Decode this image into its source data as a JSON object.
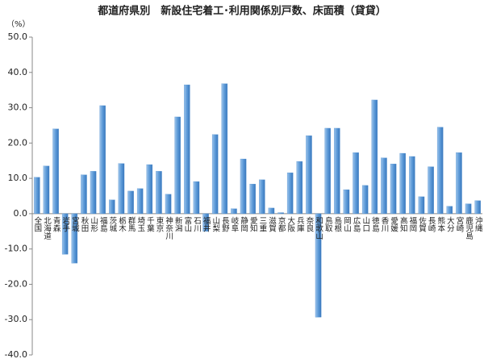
{
  "chart_data": {
    "type": "bar",
    "title": "都道府県別　新設住宅着工･利用関係別戸数、床面積（貸貸）",
    "y_label": "（%）",
    "categories": [
      "全国",
      "北海道",
      "青森",
      "岩手",
      "宮城",
      "秋田",
      "山形",
      "福島",
      "茨城",
      "栃木",
      "群馬",
      "埼玉",
      "千葉",
      "東京",
      "神奈川",
      "新潟",
      "富山",
      "石川",
      "福井",
      "山梨",
      "長野",
      "岐阜",
      "静岡",
      "愛知",
      "三重",
      "滋賀",
      "京都",
      "大阪",
      "兵庫",
      "奈良",
      "和歌山",
      "鳥取",
      "島根",
      "岡山",
      "広島",
      "山口",
      "徳島",
      "香川",
      "愛媛",
      "高知",
      "福岡",
      "佐賀",
      "長崎",
      "熊本",
      "大分",
      "宮崎",
      "鹿児島",
      "沖縄"
    ],
    "values": [
      10.3,
      13.5,
      24.0,
      -11.5,
      -14.0,
      11.0,
      12.0,
      30.6,
      3.9,
      14.2,
      6.4,
      7.1,
      13.9,
      12.0,
      5.5,
      27.4,
      36.5,
      9.1,
      -5.0,
      22.4,
      36.8,
      1.4,
      15.5,
      8.4,
      9.6,
      1.6,
      0.3,
      11.6,
      14.8,
      22.1,
      -29.3,
      24.2,
      24.2,
      6.8,
      17.3,
      8.0,
      32.2,
      15.8,
      14.1,
      17.1,
      16.2,
      4.8,
      13.3,
      24.5,
      2.1,
      17.3,
      2.8,
      3.7
    ],
    "color": "#4f8fd0",
    "ylim": [
      -40,
      50
    ],
    "yticks": [
      {
        "value": -40,
        "label": "-40.0"
      },
      {
        "value": -30,
        "label": "-30.0"
      },
      {
        "value": -20,
        "label": "-20.0"
      },
      {
        "value": -10,
        "label": "-10.0"
      },
      {
        "value": 0,
        "label": "0.0"
      },
      {
        "value": 10,
        "label": "10.0"
      },
      {
        "value": 20,
        "label": "20.0"
      },
      {
        "value": 30,
        "label": "30.0"
      },
      {
        "value": 40,
        "label": "40.0"
      },
      {
        "value": 50,
        "label": "50.0"
      }
    ]
  }
}
